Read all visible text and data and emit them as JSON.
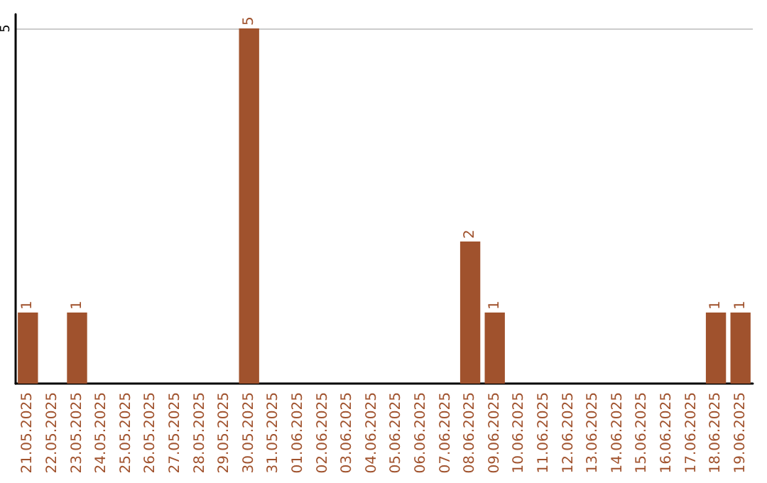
{
  "chart_data": {
    "type": "bar",
    "categories": [
      "21.05.2025",
      "22.05.2025",
      "23.05.2025",
      "24.05.2025",
      "25.05.2025",
      "26.05.2025",
      "27.05.2025",
      "28.05.2025",
      "29.05.2025",
      "30.05.2025",
      "31.05.2025",
      "01.06.2025",
      "02.06.2025",
      "03.06.2025",
      "04.06.2025",
      "05.06.2025",
      "06.06.2025",
      "07.06.2025",
      "08.06.2025",
      "09.06.2025",
      "10.06.2025",
      "11.06.2025",
      "12.06.2025",
      "13.06.2025",
      "14.06.2025",
      "15.06.2025",
      "16.06.2025",
      "17.06.2025",
      "18.06.2025",
      "19.06.2025"
    ],
    "values": [
      1,
      null,
      1,
      null,
      null,
      null,
      null,
      null,
      null,
      5,
      null,
      null,
      null,
      null,
      null,
      null,
      null,
      null,
      2,
      1,
      null,
      null,
      null,
      null,
      null,
      null,
      null,
      null,
      1,
      1
    ],
    "color": "#a0522d",
    "ylim": [
      0,
      5.2
    ],
    "yticks": [
      5
    ],
    "grid": "y",
    "data_labels": true
  }
}
